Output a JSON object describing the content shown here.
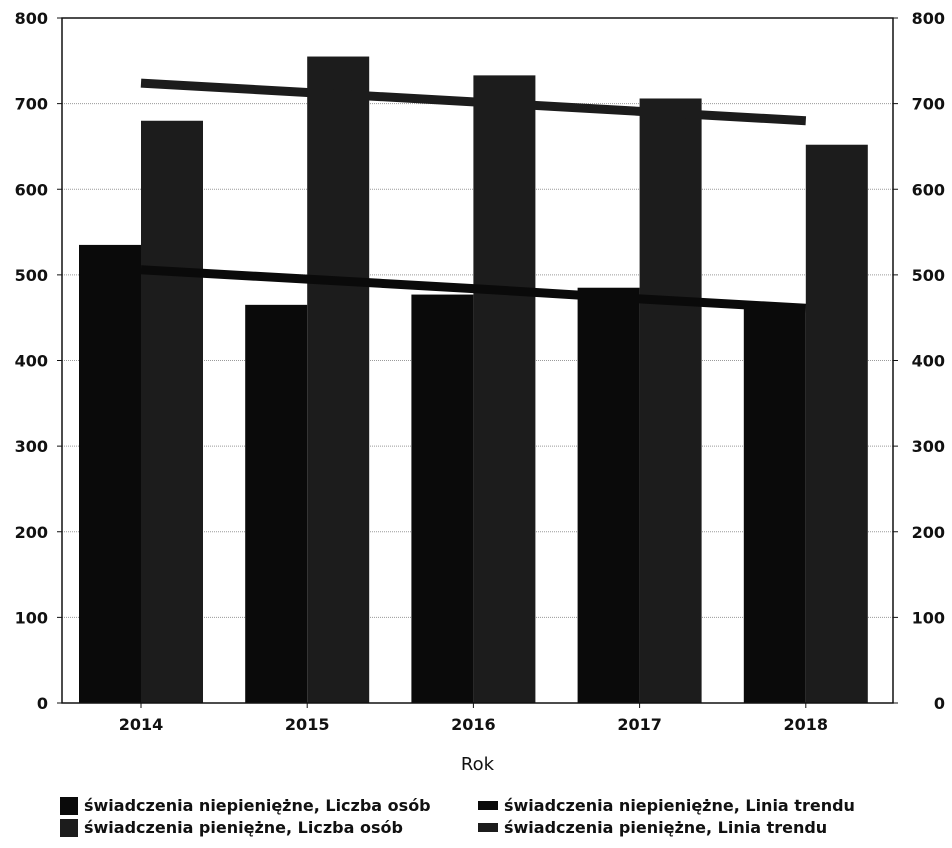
{
  "chart_data": {
    "type": "bar",
    "categories": [
      "2014",
      "2015",
      "2016",
      "2017",
      "2018"
    ],
    "series": [
      {
        "name": "świadczenia niepieniężne, Liczba osób",
        "type": "bar",
        "values": [
          535,
          465,
          477,
          485,
          463
        ],
        "color": "#0a0a0a"
      },
      {
        "name": "świadczenia pieniężne, Liczba osób",
        "type": "bar",
        "values": [
          680,
          755,
          733,
          706,
          652
        ],
        "color": "#1c1c1c"
      },
      {
        "name": "świadczenia niepieniężne, Linia trendu",
        "type": "line",
        "values": [
          506,
          495,
          484,
          472,
          461
        ],
        "color": "#0a0a0a"
      },
      {
        "name": "świadczenia pieniężne, Linia trendu",
        "type": "line",
        "values": [
          724,
          713,
          702,
          691,
          680
        ],
        "color": "#1c1c1c"
      }
    ],
    "xlabel": "Rok",
    "ylabel": "",
    "ylim": [
      0,
      800
    ],
    "yticks": [
      "0",
      "100",
      "200",
      "300",
      "400",
      "500",
      "600",
      "700",
      "800"
    ],
    "y2ticks": [
      "0",
      "100",
      "200",
      "300",
      "400",
      "500",
      "600",
      "700",
      "800"
    ],
    "grid": true,
    "legend_position": "bottom"
  }
}
